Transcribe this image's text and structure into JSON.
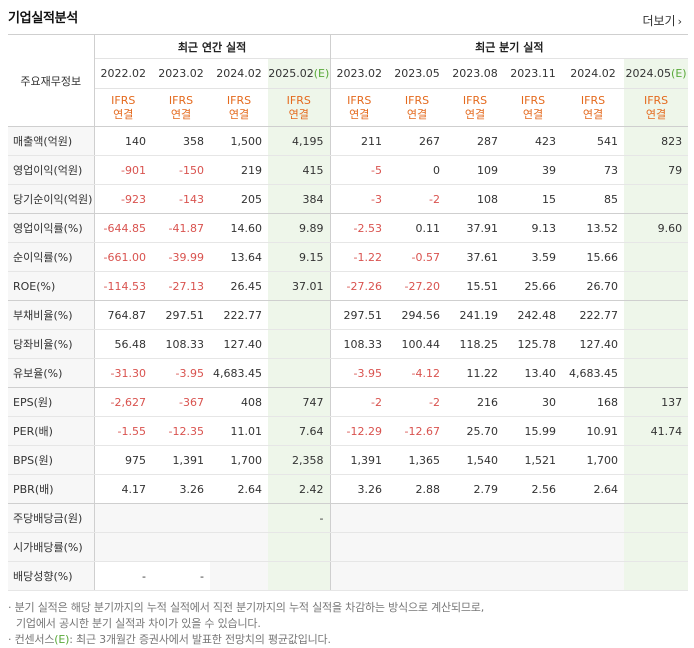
{
  "header": {
    "title": "기업실적분석",
    "more_label": "더보기"
  },
  "table": {
    "rowhead_label": "주요재무정보",
    "group_annual": "최근 연간 실적",
    "group_quarter": "최근 분기 실적",
    "periods": [
      {
        "label": "2022.02",
        "est": false
      },
      {
        "label": "2023.02",
        "est": false
      },
      {
        "label": "2024.02",
        "est": false
      },
      {
        "label": "2025.02",
        "est": true
      },
      {
        "label": "2023.02",
        "est": false
      },
      {
        "label": "2023.05",
        "est": false
      },
      {
        "label": "2023.08",
        "est": false
      },
      {
        "label": "2023.11",
        "est": false
      },
      {
        "label": "2024.02",
        "est": false
      },
      {
        "label": "2024.05",
        "est": true
      }
    ],
    "est_mark": "(E)",
    "ifrs_line1": "IFRS",
    "ifrs_line2": "연결",
    "rows": [
      {
        "label": "매출액(억원)",
        "values": [
          "140",
          "358",
          "1,500",
          "4,195",
          "211",
          "267",
          "287",
          "423",
          "541",
          "823"
        ]
      },
      {
        "label": "영업이익(억원)",
        "values": [
          "-901",
          "-150",
          "219",
          "415",
          "-5",
          "0",
          "109",
          "39",
          "73",
          "79"
        ]
      },
      {
        "label": "당기순이익(억원)",
        "values": [
          "-923",
          "-143",
          "205",
          "384",
          "-3",
          "-2",
          "108",
          "15",
          "85",
          ""
        ],
        "sep": true
      },
      {
        "label": "영업이익률(%)",
        "values": [
          "-644.85",
          "-41.87",
          "14.60",
          "9.89",
          "-2.53",
          "0.11",
          "37.91",
          "9.13",
          "13.52",
          "9.60"
        ]
      },
      {
        "label": "순이익률(%)",
        "values": [
          "-661.00",
          "-39.99",
          "13.64",
          "9.15",
          "-1.22",
          "-0.57",
          "37.61",
          "3.59",
          "15.66",
          ""
        ]
      },
      {
        "label": "ROE(%)",
        "values": [
          "-114.53",
          "-27.13",
          "26.45",
          "37.01",
          "-27.26",
          "-27.20",
          "15.51",
          "25.66",
          "26.70",
          ""
        ],
        "sep": true
      },
      {
        "label": "부채비율(%)",
        "values": [
          "764.87",
          "297.51",
          "222.77",
          "",
          "297.51",
          "294.56",
          "241.19",
          "242.48",
          "222.77",
          ""
        ]
      },
      {
        "label": "당좌비율(%)",
        "values": [
          "56.48",
          "108.33",
          "127.40",
          "",
          "108.33",
          "100.44",
          "118.25",
          "125.78",
          "127.40",
          ""
        ]
      },
      {
        "label": "유보율(%)",
        "values": [
          "-31.30",
          "-3.95",
          "4,683.45",
          "",
          "-3.95",
          "-4.12",
          "11.22",
          "13.40",
          "4,683.45",
          ""
        ],
        "sep": true
      },
      {
        "label": "EPS(원)",
        "values": [
          "-2,627",
          "-367",
          "408",
          "747",
          "-2",
          "-2",
          "216",
          "30",
          "168",
          "137"
        ]
      },
      {
        "label": "PER(배)",
        "values": [
          "-1.55",
          "-12.35",
          "11.01",
          "7.64",
          "-12.29",
          "-12.67",
          "25.70",
          "15.99",
          "10.91",
          "41.74"
        ]
      },
      {
        "label": "BPS(원)",
        "values": [
          "975",
          "1,391",
          "1,700",
          "2,358",
          "1,391",
          "1,365",
          "1,540",
          "1,521",
          "1,700",
          ""
        ]
      },
      {
        "label": "PBR(배)",
        "values": [
          "4.17",
          "3.26",
          "2.64",
          "2.42",
          "3.26",
          "2.88",
          "2.79",
          "2.56",
          "2.64",
          ""
        ],
        "sep": true
      },
      {
        "label": "주당배당금(원)",
        "values": [
          "",
          "",
          "",
          "-",
          "",
          "",
          "",
          "",
          "",
          ""
        ]
      },
      {
        "label": "시가배당률(%)",
        "values": [
          "",
          "",
          "",
          "",
          "",
          "",
          "",
          "",
          "",
          ""
        ]
      },
      {
        "label": "배당성향(%)",
        "values": [
          "-",
          "-",
          "",
          "",
          "",
          "",
          "",
          "",
          "",
          ""
        ]
      }
    ]
  },
  "notes": {
    "line1": "· 분기 실적은 해당 분기까지의 누적 실적에서 직전 분기까지의 누적 실적을 차감하는 방식으로 계산되므로,",
    "line2": "기업에서 공시한 분기 실적과 차이가 있을 수 있습니다.",
    "line3_pre": "· 컨센서스",
    "line3_e": "(E)",
    "line3_post": ": 최근 3개월간 증권사에서 발표한 전망치의 평균값입니다."
  },
  "colors": {
    "negative": "#d9534f",
    "ifrs": "#e46a1e",
    "estimate_bg": "#eef6ea",
    "estimate_mark": "#5aa93a"
  }
}
